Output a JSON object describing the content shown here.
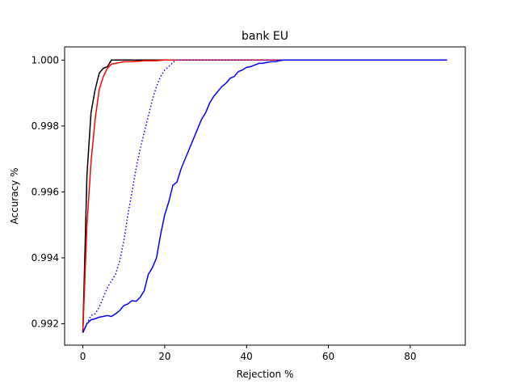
{
  "chart_data": {
    "type": "line",
    "title": "bank EU",
    "xlabel": "Rejection %",
    "ylabel": "Accuracy %",
    "xlim": [
      -4.45,
      93.45
    ],
    "ylim": [
      0.99135,
      1.0004
    ],
    "xticks": [
      0,
      20,
      40,
      60,
      80
    ],
    "xtick_labels": [
      "0",
      "20",
      "40",
      "60",
      "80"
    ],
    "yticks": [
      0.992,
      0.994,
      0.996,
      0.998,
      1.0
    ],
    "ytick_labels": [
      "0.992",
      "0.994",
      "0.996",
      "0.998",
      "1.000"
    ],
    "grid": false,
    "legend": "none",
    "series": [
      {
        "color": "#000000",
        "style": "solid",
        "x": [
          0,
          1,
          2,
          3,
          4,
          5,
          6,
          7,
          8,
          10,
          12,
          15,
          20,
          89
        ],
        "y": [
          0.99173,
          0.9965,
          0.9984,
          0.9991,
          0.9996,
          0.99975,
          0.9998,
          1.0,
          1.0,
          1.0,
          1.0,
          1.0,
          1.0,
          1.0
        ]
      },
      {
        "color": "#ff0000",
        "style": "solid",
        "x": [
          0,
          1,
          2,
          3,
          4,
          5,
          6,
          7,
          8,
          10,
          12,
          15,
          18,
          20,
          89
        ],
        "y": [
          0.99173,
          0.995,
          0.9969,
          0.9982,
          0.9991,
          0.9995,
          0.99975,
          0.99988,
          0.9999,
          0.99995,
          0.99995,
          0.99998,
          0.99998,
          1.0,
          1.0
        ]
      },
      {
        "color": "#0000ff",
        "style": "dotted",
        "x": [
          0,
          1,
          2,
          3,
          4,
          5,
          6,
          7,
          8,
          9,
          10,
          11,
          12,
          13,
          14,
          15,
          16,
          17,
          18,
          19,
          20,
          21,
          22,
          23,
          89
        ],
        "y": [
          0.99173,
          0.992,
          0.99225,
          0.9923,
          0.9925,
          0.9928,
          0.9931,
          0.9933,
          0.9935,
          0.9939,
          0.9945,
          0.9953,
          0.996,
          0.9967,
          0.9973,
          0.9978,
          0.9983,
          0.9988,
          0.9992,
          0.9995,
          0.9997,
          0.9998,
          0.99993,
          1.0,
          1.0
        ]
      },
      {
        "color": "#0000ff",
        "style": "solid",
        "x": [
          0,
          1,
          2,
          3,
          4,
          5,
          6,
          7,
          8,
          9,
          10,
          11,
          12,
          13,
          14,
          15,
          16,
          17,
          18,
          19,
          20,
          21,
          22,
          23,
          24,
          25,
          26,
          27,
          28,
          29,
          30,
          31,
          32,
          33,
          34,
          35,
          36,
          37,
          38,
          39,
          40,
          41,
          42,
          43,
          44,
          45,
          46,
          47,
          48,
          49,
          50,
          89
        ],
        "y": [
          0.99173,
          0.992,
          0.99212,
          0.99215,
          0.9922,
          0.99222,
          0.99225,
          0.99222,
          0.9923,
          0.9924,
          0.99255,
          0.9926,
          0.9927,
          0.99268,
          0.9928,
          0.993,
          0.9935,
          0.9937,
          0.994,
          0.9947,
          0.9953,
          0.9957,
          0.9962,
          0.9963,
          0.9967,
          0.997,
          0.9973,
          0.9976,
          0.9979,
          0.9982,
          0.9984,
          0.9987,
          0.9989,
          0.99905,
          0.9992,
          0.9993,
          0.99945,
          0.9995,
          0.99965,
          0.9997,
          0.99978,
          0.9998,
          0.99985,
          0.9999,
          0.9999,
          0.99993,
          0.99995,
          0.99995,
          0.99998,
          1.0,
          1.0,
          1.0
        ]
      }
    ]
  }
}
